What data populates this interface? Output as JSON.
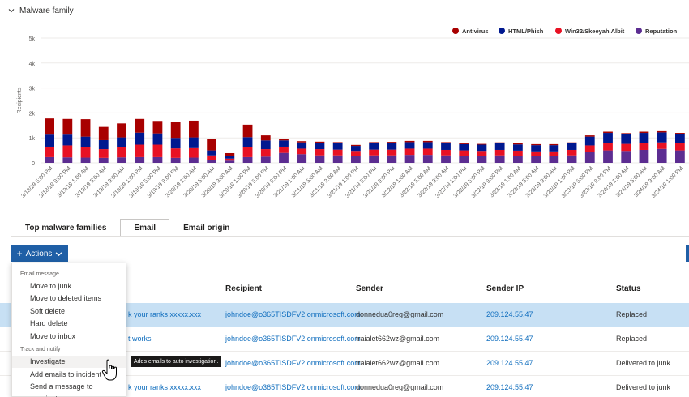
{
  "filter": {
    "label": "Malware family"
  },
  "chart_data": {
    "type": "bar",
    "stacked": true,
    "ylabel": "Recipients",
    "ylim": [
      0,
      5000
    ],
    "yticks": [
      "0",
      "1k",
      "2k",
      "3k",
      "4k",
      "5k"
    ],
    "grid": true,
    "legend_position": "top-right",
    "categories": [
      "3/18/19 5:00 PM",
      "3/18/19 9:00 PM",
      "3/19/19 1:00 AM",
      "3/19/19 5:00 AM",
      "3/19/19 9:00 AM",
      "3/19/19 1:00 PM",
      "3/19/19 5:00 PM",
      "3/19/19 9:00 PM",
      "3/20/19 1:00 AM",
      "3/20/19 5:00 AM",
      "3/20/19 9:00 AM",
      "3/20/19 1:00 PM",
      "3/20/19 5:00 PM",
      "3/20/19 9:00 PM",
      "3/21/19 1:00 AM",
      "3/21/19 5:00 AM",
      "3/21/19 9:00 AM",
      "3/21/19 1:00 PM",
      "3/21/19 5:00 PM",
      "3/21/19 9:00 PM",
      "3/22/19 1:00 AM",
      "3/22/19 5:00 AM",
      "3/22/19 9:00 AM",
      "3/22/19 1:00 PM",
      "3/22/19 5:00 PM",
      "3/22/19 9:00 PM",
      "3/23/19 1:00 AM",
      "3/23/19 5:00 AM",
      "3/23/19 9:00 AM",
      "3/23/19 1:00 PM",
      "3/23/19 5:00 PM",
      "3/23/19 9:00 PM",
      "3/24/19 1:00 AM",
      "3/24/19 5:00 AM",
      "3/24/19 9:00 AM",
      "3/24/19 1:00 PM"
    ],
    "series": [
      {
        "name": "Reputation",
        "color": "#5c2d91",
        "values": [
          230,
          220,
          210,
          200,
          220,
          230,
          230,
          200,
          210,
          120,
          90,
          230,
          250,
          400,
          350,
          300,
          300,
          280,
          300,
          300,
          320,
          320,
          300,
          280,
          280,
          300,
          270,
          260,
          260,
          300,
          450,
          500,
          480,
          520,
          560,
          500
        ]
      },
      {
        "name": "Win32/Skeeyah.Albit",
        "color": "#e81123",
        "values": [
          420,
          480,
          420,
          350,
          400,
          500,
          500,
          380,
          380,
          180,
          80,
          400,
          300,
          250,
          220,
          250,
          230,
          200,
          230,
          230,
          250,
          250,
          220,
          220,
          200,
          220,
          220,
          200,
          200,
          220,
          250,
          300,
          280,
          280,
          260,
          280
        ]
      },
      {
        "name": "HTML/Phish",
        "color": "#00188f",
        "values": [
          480,
          430,
          420,
          360,
          400,
          480,
          450,
          420,
          430,
          200,
          110,
          400,
          350,
          250,
          250,
          250,
          250,
          200,
          250,
          260,
          260,
          260,
          260,
          250,
          250,
          260,
          250,
          250,
          250,
          260,
          350,
          400,
          380,
          400,
          400,
          380
        ]
      },
      {
        "name": "Antivirus",
        "color": "#a80000",
        "values": [
          650,
          630,
          700,
          530,
          560,
          550,
          500,
          650,
          670,
          450,
          110,
          500,
          200,
          60,
          50,
          50,
          50,
          40,
          50,
          50,
          50,
          50,
          50,
          40,
          30,
          40,
          40,
          40,
          40,
          40,
          50,
          50,
          50,
          50,
          50,
          40
        ]
      }
    ],
    "legend": [
      "Antivirus",
      "HTML/Phish",
      "Win32/Skeeyah.Albit",
      "Reputation"
    ]
  },
  "tabs": [
    {
      "label": "Top malware families",
      "active": false
    },
    {
      "label": "Email",
      "active": true
    },
    {
      "label": "Email origin",
      "active": false
    }
  ],
  "actions": {
    "label": "Actions"
  },
  "menu": {
    "section1": "Email message",
    "items1": [
      "Move to junk",
      "Move to deleted items",
      "Soft delete",
      "Hard delete",
      "Move to inbox"
    ],
    "section2": "Track and notify",
    "items2": [
      "Investigate",
      "Add emails to incident",
      "Send a message to recipients"
    ]
  },
  "tooltip": "Adds emails to auto investigation.",
  "table": {
    "headers": {
      "recipient": "Recipient",
      "sender": "Sender",
      "sender_ip": "Sender IP",
      "status": "Status"
    },
    "rows": [
      {
        "subject": "k your ranks xxxxx.xxx",
        "recipient": "johndoe@o365TISDFV2.onmicrosoft.com",
        "sender": "donnedua0reg@gmail.com",
        "sender_ip": "209.124.55.47",
        "status": "Replaced",
        "selected": true
      },
      {
        "subject": "t works",
        "recipient": "johndoe@o365TISDFV2.onmicrosoft.com",
        "sender": "traialet662wz@gmail.com",
        "sender_ip": "209.124.55.47",
        "status": "Replaced",
        "selected": false
      },
      {
        "subject": "",
        "recipient": "johndoe@o365TISDFV2.onmicrosoft.com",
        "sender": "traialet662wz@gmail.com",
        "sender_ip": "209.124.55.47",
        "status": "Delivered to junk",
        "selected": false
      },
      {
        "subject": "k your ranks xxxxx.xxx",
        "recipient": "johndoe@o365TISDFV2.onmicrosoft.com",
        "sender": "donnedua0reg@gmail.com",
        "sender_ip": "209.124.55.47",
        "status": "Delivered to junk",
        "selected": false
      }
    ]
  }
}
